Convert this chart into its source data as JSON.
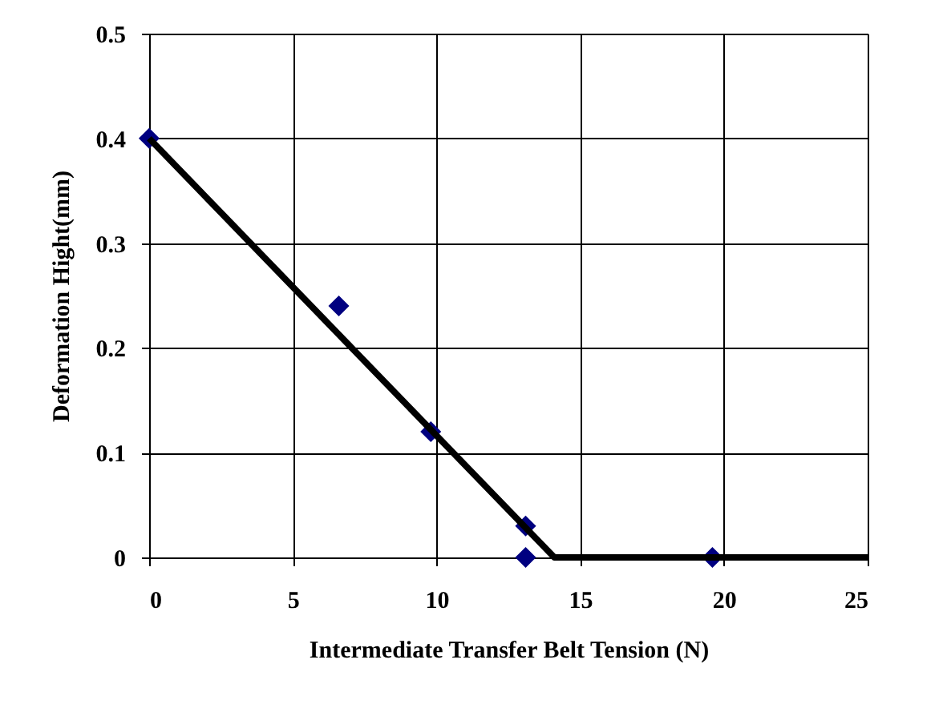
{
  "chart_data": {
    "type": "scatter",
    "xlabel": "Intermediate Transfer Belt Tension (N)",
    "ylabel": "Deformation Hight(mm)",
    "series": [
      {
        "color": "#000080",
        "marker": "diamond",
        "x": [
          0,
          6.6,
          9.8,
          13.1,
          13.1,
          19.6
        ],
        "values": [
          0.4,
          0.24,
          0.12,
          0.03,
          0,
          0
        ]
      },
      {
        "type": "line",
        "color": "#000000",
        "marker": "none",
        "line_style": "solid",
        "x": [
          0,
          14.1,
          25
        ],
        "values": [
          0.4,
          0,
          0
        ]
      }
    ],
    "xlim": [
      0,
      25
    ],
    "xticks": [
      0,
      5,
      10,
      15,
      20,
      25
    ],
    "ylim": [
      0,
      0.5
    ],
    "yticks": [
      0,
      0.1,
      0.2,
      0.3,
      0.4,
      0.5
    ],
    "grid": true,
    "legend": false
  }
}
